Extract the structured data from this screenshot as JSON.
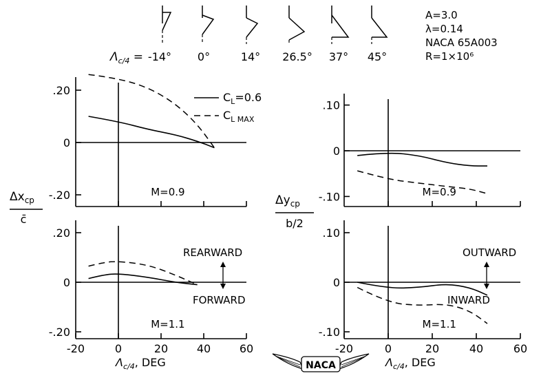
{
  "figure": {
    "sweep_symbol": "Λ",
    "sweep_sub": "c/4",
    "sweep_values": [
      "-14°",
      "0°",
      "14°",
      "26.5°",
      "37°",
      "45°"
    ],
    "params": [
      "A=3.0",
      "λ=0.14",
      "NACA 65A003",
      "R=1×10⁶"
    ],
    "legend": [
      {
        "sym": "C",
        "sub": "L",
        "suffix": "=0.6",
        "style": "solid"
      },
      {
        "sym": "C",
        "sub": "L MAX",
        "suffix": "",
        "style": "dashed"
      }
    ],
    "xcp_label_top": "Δx",
    "xcp_label_sub": "cp",
    "xcp_label_bottom": "c̄",
    "ycp_label_top": "Δy",
    "ycp_label_sub": "cp",
    "ycp_label_bottom": "b/2",
    "x_axis_symbol": "Λ",
    "x_axis_sub": "c/4",
    "x_axis_unit": ", DEG",
    "rearward": "REARWARD",
    "forward": "FORWARD",
    "outward": "OUTWARD",
    "inward": "INWARD",
    "logo_text": "NACA"
  },
  "chart_data": [
    {
      "type": "line",
      "panel": "top-left",
      "annotation": "M=0.9",
      "ylim": [
        -0.25,
        0.25
      ],
      "yticks": [
        ".20",
        "0",
        "-.20"
      ],
      "xlim": [
        -20,
        60
      ],
      "series": [
        {
          "name": "CL=0.6",
          "style": "solid",
          "x": [
            -14,
            0,
            14,
            26.5,
            37,
            45
          ],
          "y": [
            0.1,
            0.08,
            0.05,
            0.03,
            0.005,
            -0.02
          ]
        },
        {
          "name": "CLMAX",
          "style": "dashed",
          "x": [
            -14,
            0,
            14,
            26.5,
            37,
            45
          ],
          "y": [
            0.26,
            0.245,
            0.21,
            0.15,
            0.07,
            -0.02
          ]
        }
      ]
    },
    {
      "type": "line",
      "panel": "bottom-left",
      "annotation": "M=1.1",
      "ylim": [
        -0.25,
        0.25
      ],
      "yticks": [
        ".20",
        "0",
        "-.20"
      ],
      "xlim": [
        -20,
        60
      ],
      "xticks": [
        "-20",
        "0",
        "20",
        "40",
        "60"
      ],
      "series": [
        {
          "name": "CL=0.6",
          "style": "solid",
          "x": [
            -14,
            -7,
            0,
            14,
            26.5,
            37
          ],
          "y": [
            0.015,
            0.03,
            0.035,
            0.02,
            0.0,
            -0.01
          ]
        },
        {
          "name": "CLMAX",
          "style": "dashed",
          "x": [
            -14,
            -7,
            0,
            14,
            26.5,
            37
          ],
          "y": [
            0.065,
            0.08,
            0.085,
            0.07,
            0.03,
            -0.01
          ]
        }
      ]
    },
    {
      "type": "line",
      "panel": "top-right",
      "annotation": "M=0.9",
      "ylim": [
        -0.12,
        0.12
      ],
      "yticks": [
        ".10",
        "0",
        "-.10"
      ],
      "xlim": [
        -20,
        60
      ],
      "series": [
        {
          "name": "CL=0.6",
          "style": "solid",
          "x": [
            -14,
            0,
            14,
            26.5,
            37,
            45
          ],
          "y": [
            -0.01,
            -0.003,
            -0.01,
            -0.025,
            -0.032,
            -0.032
          ]
        },
        {
          "name": "CLMAX",
          "style": "dashed",
          "x": [
            -14,
            0,
            14,
            26.5,
            37,
            45
          ],
          "y": [
            -0.042,
            -0.06,
            -0.068,
            -0.075,
            -0.08,
            -0.09
          ]
        }
      ]
    },
    {
      "type": "line",
      "panel": "bottom-right",
      "annotation": "M=1.1",
      "ylim": [
        -0.12,
        0.12
      ],
      "yticks": [
        ".10",
        "0",
        "-.10"
      ],
      "xlim": [
        -20,
        60
      ],
      "xticks": [
        "-20",
        "0",
        "20",
        "40",
        "60"
      ],
      "series": [
        {
          "name": "CL=0.6",
          "style": "solid",
          "x": [
            -14,
            0,
            14,
            26.5,
            37,
            45
          ],
          "y": [
            0.0,
            -0.012,
            -0.01,
            -0.003,
            -0.01,
            -0.025
          ]
        },
        {
          "name": "CLMAX",
          "style": "dashed",
          "x": [
            -14,
            0,
            14,
            26.5,
            37,
            45
          ],
          "y": [
            -0.01,
            -0.04,
            -0.045,
            -0.042,
            -0.055,
            -0.08
          ]
        }
      ]
    }
  ]
}
